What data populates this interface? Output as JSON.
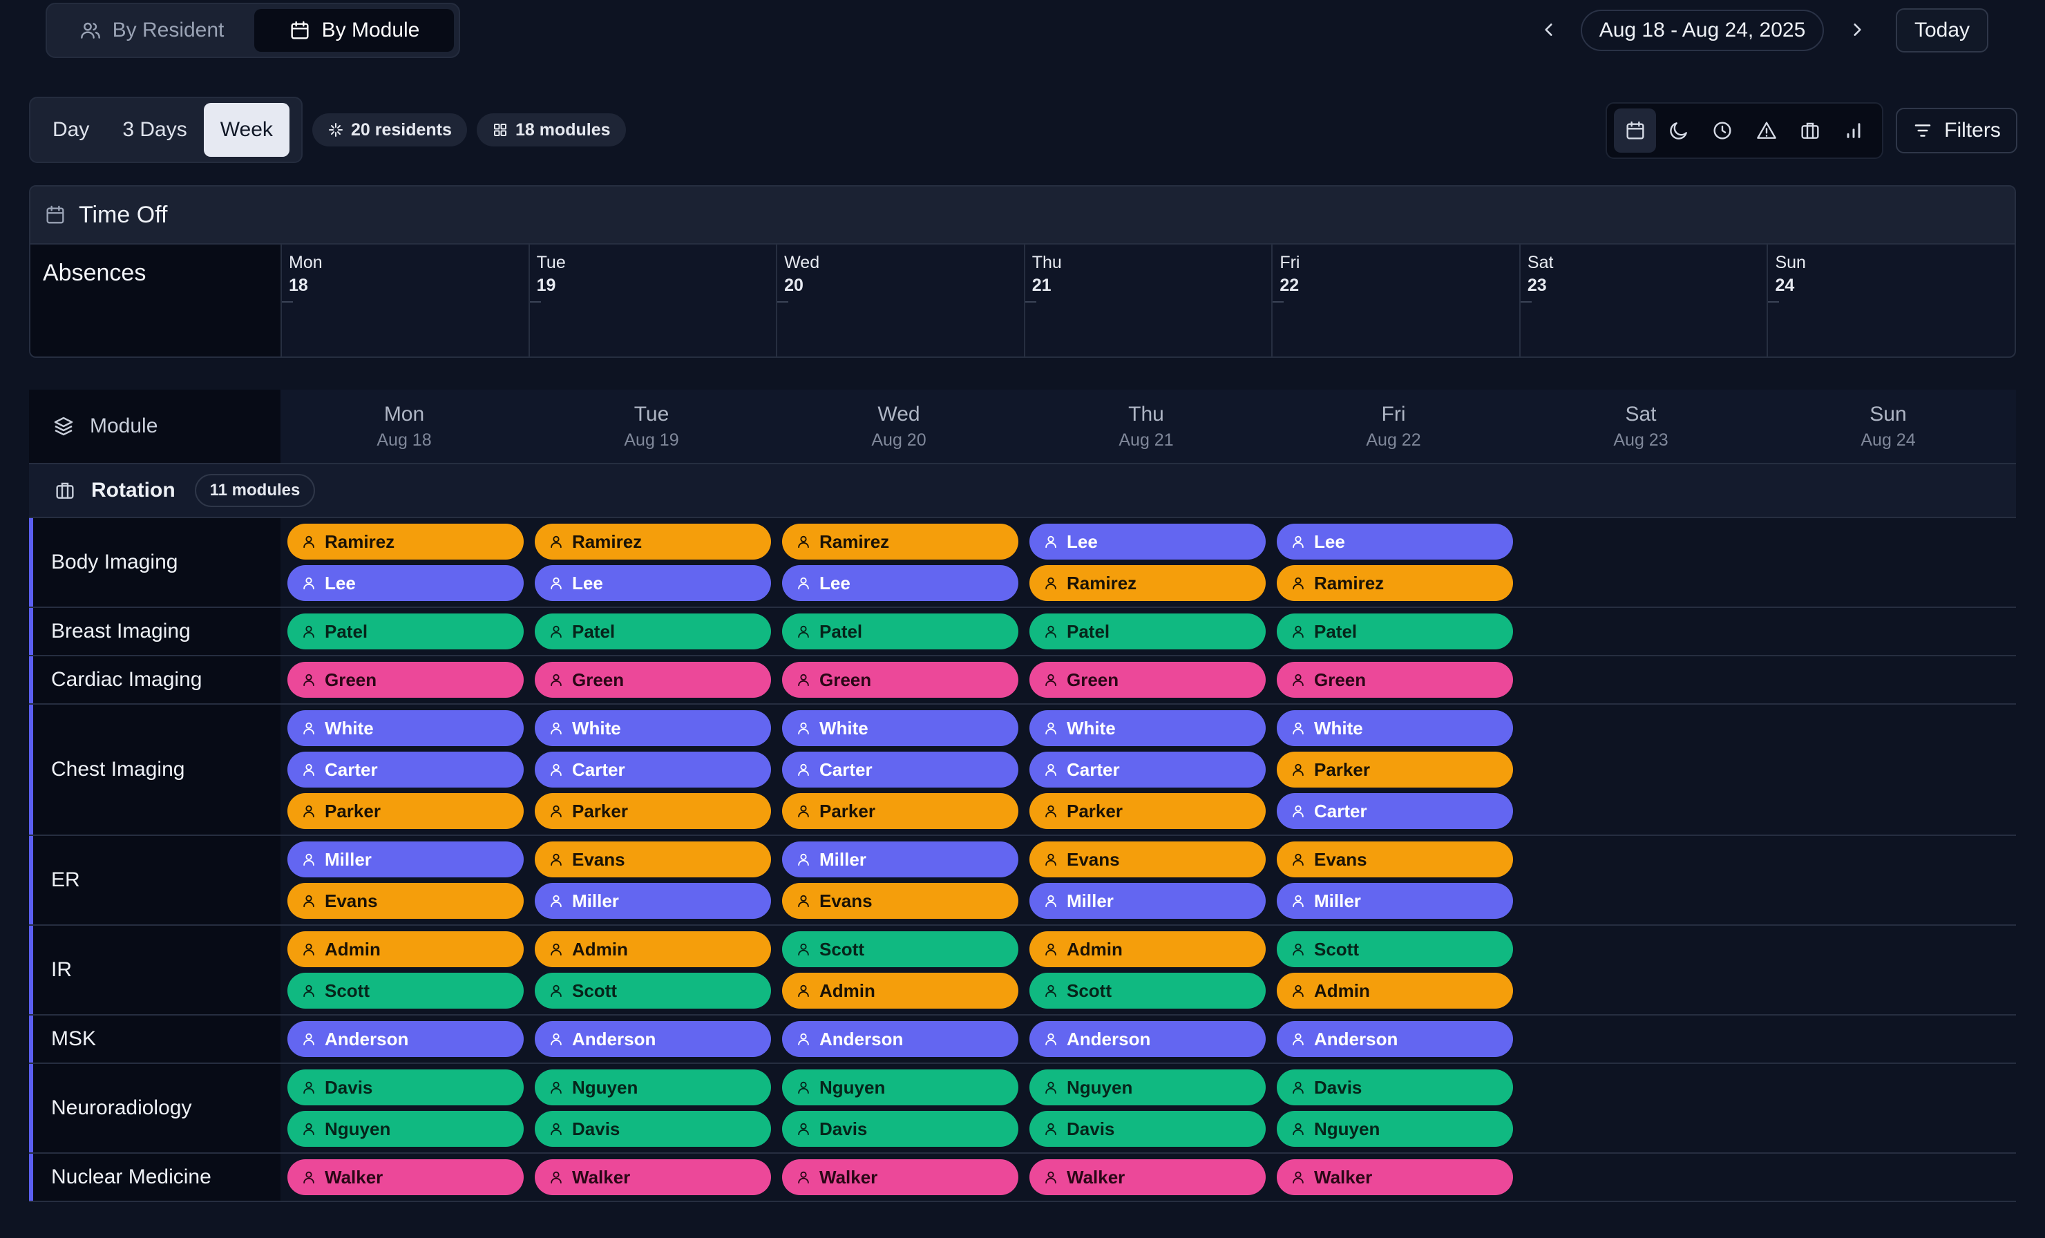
{
  "header": {
    "view_tabs": [
      {
        "label": "By Resident",
        "icon": "users-icon",
        "active": false
      },
      {
        "label": "By Module",
        "icon": "calendar-icon",
        "active": true
      }
    ],
    "date_range": "Aug 18 - Aug 24, 2025",
    "today_label": "Today"
  },
  "toolbar": {
    "range_tabs": [
      {
        "label": "Day",
        "active": false
      },
      {
        "label": "3 Days",
        "active": false
      },
      {
        "label": "Week",
        "active": true
      }
    ],
    "residents_badge": "20 residents",
    "modules_badge": "18 modules",
    "icon_buttons": [
      "calendar-icon",
      "moon-icon",
      "clock-icon",
      "alert-triangle-icon",
      "briefcase-icon",
      "bar-chart-icon"
    ],
    "filters_label": "Filters"
  },
  "time_off": {
    "title": "Time Off",
    "absences_label": "Absences",
    "days": [
      {
        "name": "Mon",
        "num": "18"
      },
      {
        "name": "Tue",
        "num": "19"
      },
      {
        "name": "Wed",
        "num": "20"
      },
      {
        "name": "Thu",
        "num": "21"
      },
      {
        "name": "Fri",
        "num": "22"
      },
      {
        "name": "Sat",
        "num": "23"
      },
      {
        "name": "Sun",
        "num": "24"
      }
    ]
  },
  "grid": {
    "module_label": "Module",
    "days": [
      {
        "name": "Mon",
        "date": "Aug 18"
      },
      {
        "name": "Tue",
        "date": "Aug 19"
      },
      {
        "name": "Wed",
        "date": "Aug 20"
      },
      {
        "name": "Thu",
        "date": "Aug 21"
      },
      {
        "name": "Fri",
        "date": "Aug 22"
      },
      {
        "name": "Sat",
        "date": "Aug 23"
      },
      {
        "name": "Sun",
        "date": "Aug 24"
      }
    ],
    "group": {
      "label": "Rotation",
      "count": "11 modules"
    },
    "colors": {
      "orange": "#f59e0b",
      "blue": "#6366f1",
      "green": "#10b981",
      "pink": "#ec4899"
    },
    "modules": [
      {
        "name": "Body Imaging",
        "days": [
          [
            {
              "n": "Ramirez",
              "c": "orange"
            },
            {
              "n": "Lee",
              "c": "blue"
            }
          ],
          [
            {
              "n": "Ramirez",
              "c": "orange"
            },
            {
              "n": "Lee",
              "c": "blue"
            }
          ],
          [
            {
              "n": "Ramirez",
              "c": "orange"
            },
            {
              "n": "Lee",
              "c": "blue"
            }
          ],
          [
            {
              "n": "Lee",
              "c": "blue"
            },
            {
              "n": "Ramirez",
              "c": "orange"
            }
          ],
          [
            {
              "n": "Lee",
              "c": "blue"
            },
            {
              "n": "Ramirez",
              "c": "orange"
            }
          ],
          [],
          []
        ]
      },
      {
        "name": "Breast Imaging",
        "days": [
          [
            {
              "n": "Patel",
              "c": "green"
            }
          ],
          [
            {
              "n": "Patel",
              "c": "green"
            }
          ],
          [
            {
              "n": "Patel",
              "c": "green"
            }
          ],
          [
            {
              "n": "Patel",
              "c": "green"
            }
          ],
          [
            {
              "n": "Patel",
              "c": "green"
            }
          ],
          [],
          []
        ]
      },
      {
        "name": "Cardiac Imaging",
        "days": [
          [
            {
              "n": "Green",
              "c": "pink"
            }
          ],
          [
            {
              "n": "Green",
              "c": "pink"
            }
          ],
          [
            {
              "n": "Green",
              "c": "pink"
            }
          ],
          [
            {
              "n": "Green",
              "c": "pink"
            }
          ],
          [
            {
              "n": "Green",
              "c": "pink"
            }
          ],
          [],
          []
        ]
      },
      {
        "name": "Chest Imaging",
        "days": [
          [
            {
              "n": "White",
              "c": "blue"
            },
            {
              "n": "Carter",
              "c": "blue"
            },
            {
              "n": "Parker",
              "c": "orange"
            }
          ],
          [
            {
              "n": "White",
              "c": "blue"
            },
            {
              "n": "Carter",
              "c": "blue"
            },
            {
              "n": "Parker",
              "c": "orange"
            }
          ],
          [
            {
              "n": "White",
              "c": "blue"
            },
            {
              "n": "Carter",
              "c": "blue"
            },
            {
              "n": "Parker",
              "c": "orange"
            }
          ],
          [
            {
              "n": "White",
              "c": "blue"
            },
            {
              "n": "Carter",
              "c": "blue"
            },
            {
              "n": "Parker",
              "c": "orange"
            }
          ],
          [
            {
              "n": "White",
              "c": "blue"
            },
            {
              "n": "Parker",
              "c": "orange"
            },
            {
              "n": "Carter",
              "c": "blue"
            }
          ],
          [],
          []
        ]
      },
      {
        "name": "ER",
        "days": [
          [
            {
              "n": "Miller",
              "c": "blue"
            },
            {
              "n": "Evans",
              "c": "orange"
            }
          ],
          [
            {
              "n": "Evans",
              "c": "orange"
            },
            {
              "n": "Miller",
              "c": "blue"
            }
          ],
          [
            {
              "n": "Miller",
              "c": "blue"
            },
            {
              "n": "Evans",
              "c": "orange"
            }
          ],
          [
            {
              "n": "Evans",
              "c": "orange"
            },
            {
              "n": "Miller",
              "c": "blue"
            }
          ],
          [
            {
              "n": "Evans",
              "c": "orange"
            },
            {
              "n": "Miller",
              "c": "blue"
            }
          ],
          [],
          []
        ]
      },
      {
        "name": "IR",
        "days": [
          [
            {
              "n": "Admin",
              "c": "orange"
            },
            {
              "n": "Scott",
              "c": "green"
            }
          ],
          [
            {
              "n": "Admin",
              "c": "orange"
            },
            {
              "n": "Scott",
              "c": "green"
            }
          ],
          [
            {
              "n": "Scott",
              "c": "green"
            },
            {
              "n": "Admin",
              "c": "orange"
            }
          ],
          [
            {
              "n": "Admin",
              "c": "orange"
            },
            {
              "n": "Scott",
              "c": "green"
            }
          ],
          [
            {
              "n": "Scott",
              "c": "green"
            },
            {
              "n": "Admin",
              "c": "orange"
            }
          ],
          [],
          []
        ]
      },
      {
        "name": "MSK",
        "days": [
          [
            {
              "n": "Anderson",
              "c": "blue"
            }
          ],
          [
            {
              "n": "Anderson",
              "c": "blue"
            }
          ],
          [
            {
              "n": "Anderson",
              "c": "blue"
            }
          ],
          [
            {
              "n": "Anderson",
              "c": "blue"
            }
          ],
          [
            {
              "n": "Anderson",
              "c": "blue"
            }
          ],
          [],
          []
        ]
      },
      {
        "name": "Neuroradiology",
        "days": [
          [
            {
              "n": "Davis",
              "c": "green"
            },
            {
              "n": "Nguyen",
              "c": "green"
            }
          ],
          [
            {
              "n": "Nguyen",
              "c": "green"
            },
            {
              "n": "Davis",
              "c": "green"
            }
          ],
          [
            {
              "n": "Nguyen",
              "c": "green"
            },
            {
              "n": "Davis",
              "c": "green"
            }
          ],
          [
            {
              "n": "Nguyen",
              "c": "green"
            },
            {
              "n": "Davis",
              "c": "green"
            }
          ],
          [
            {
              "n": "Davis",
              "c": "green"
            },
            {
              "n": "Nguyen",
              "c": "green"
            }
          ],
          [],
          []
        ]
      },
      {
        "name": "Nuclear Medicine",
        "days": [
          [
            {
              "n": "Walker",
              "c": "pink"
            }
          ],
          [
            {
              "n": "Walker",
              "c": "pink"
            }
          ],
          [
            {
              "n": "Walker",
              "c": "pink"
            }
          ],
          [
            {
              "n": "Walker",
              "c": "pink"
            }
          ],
          [
            {
              "n": "Walker",
              "c": "pink"
            }
          ],
          [],
          []
        ]
      }
    ]
  }
}
